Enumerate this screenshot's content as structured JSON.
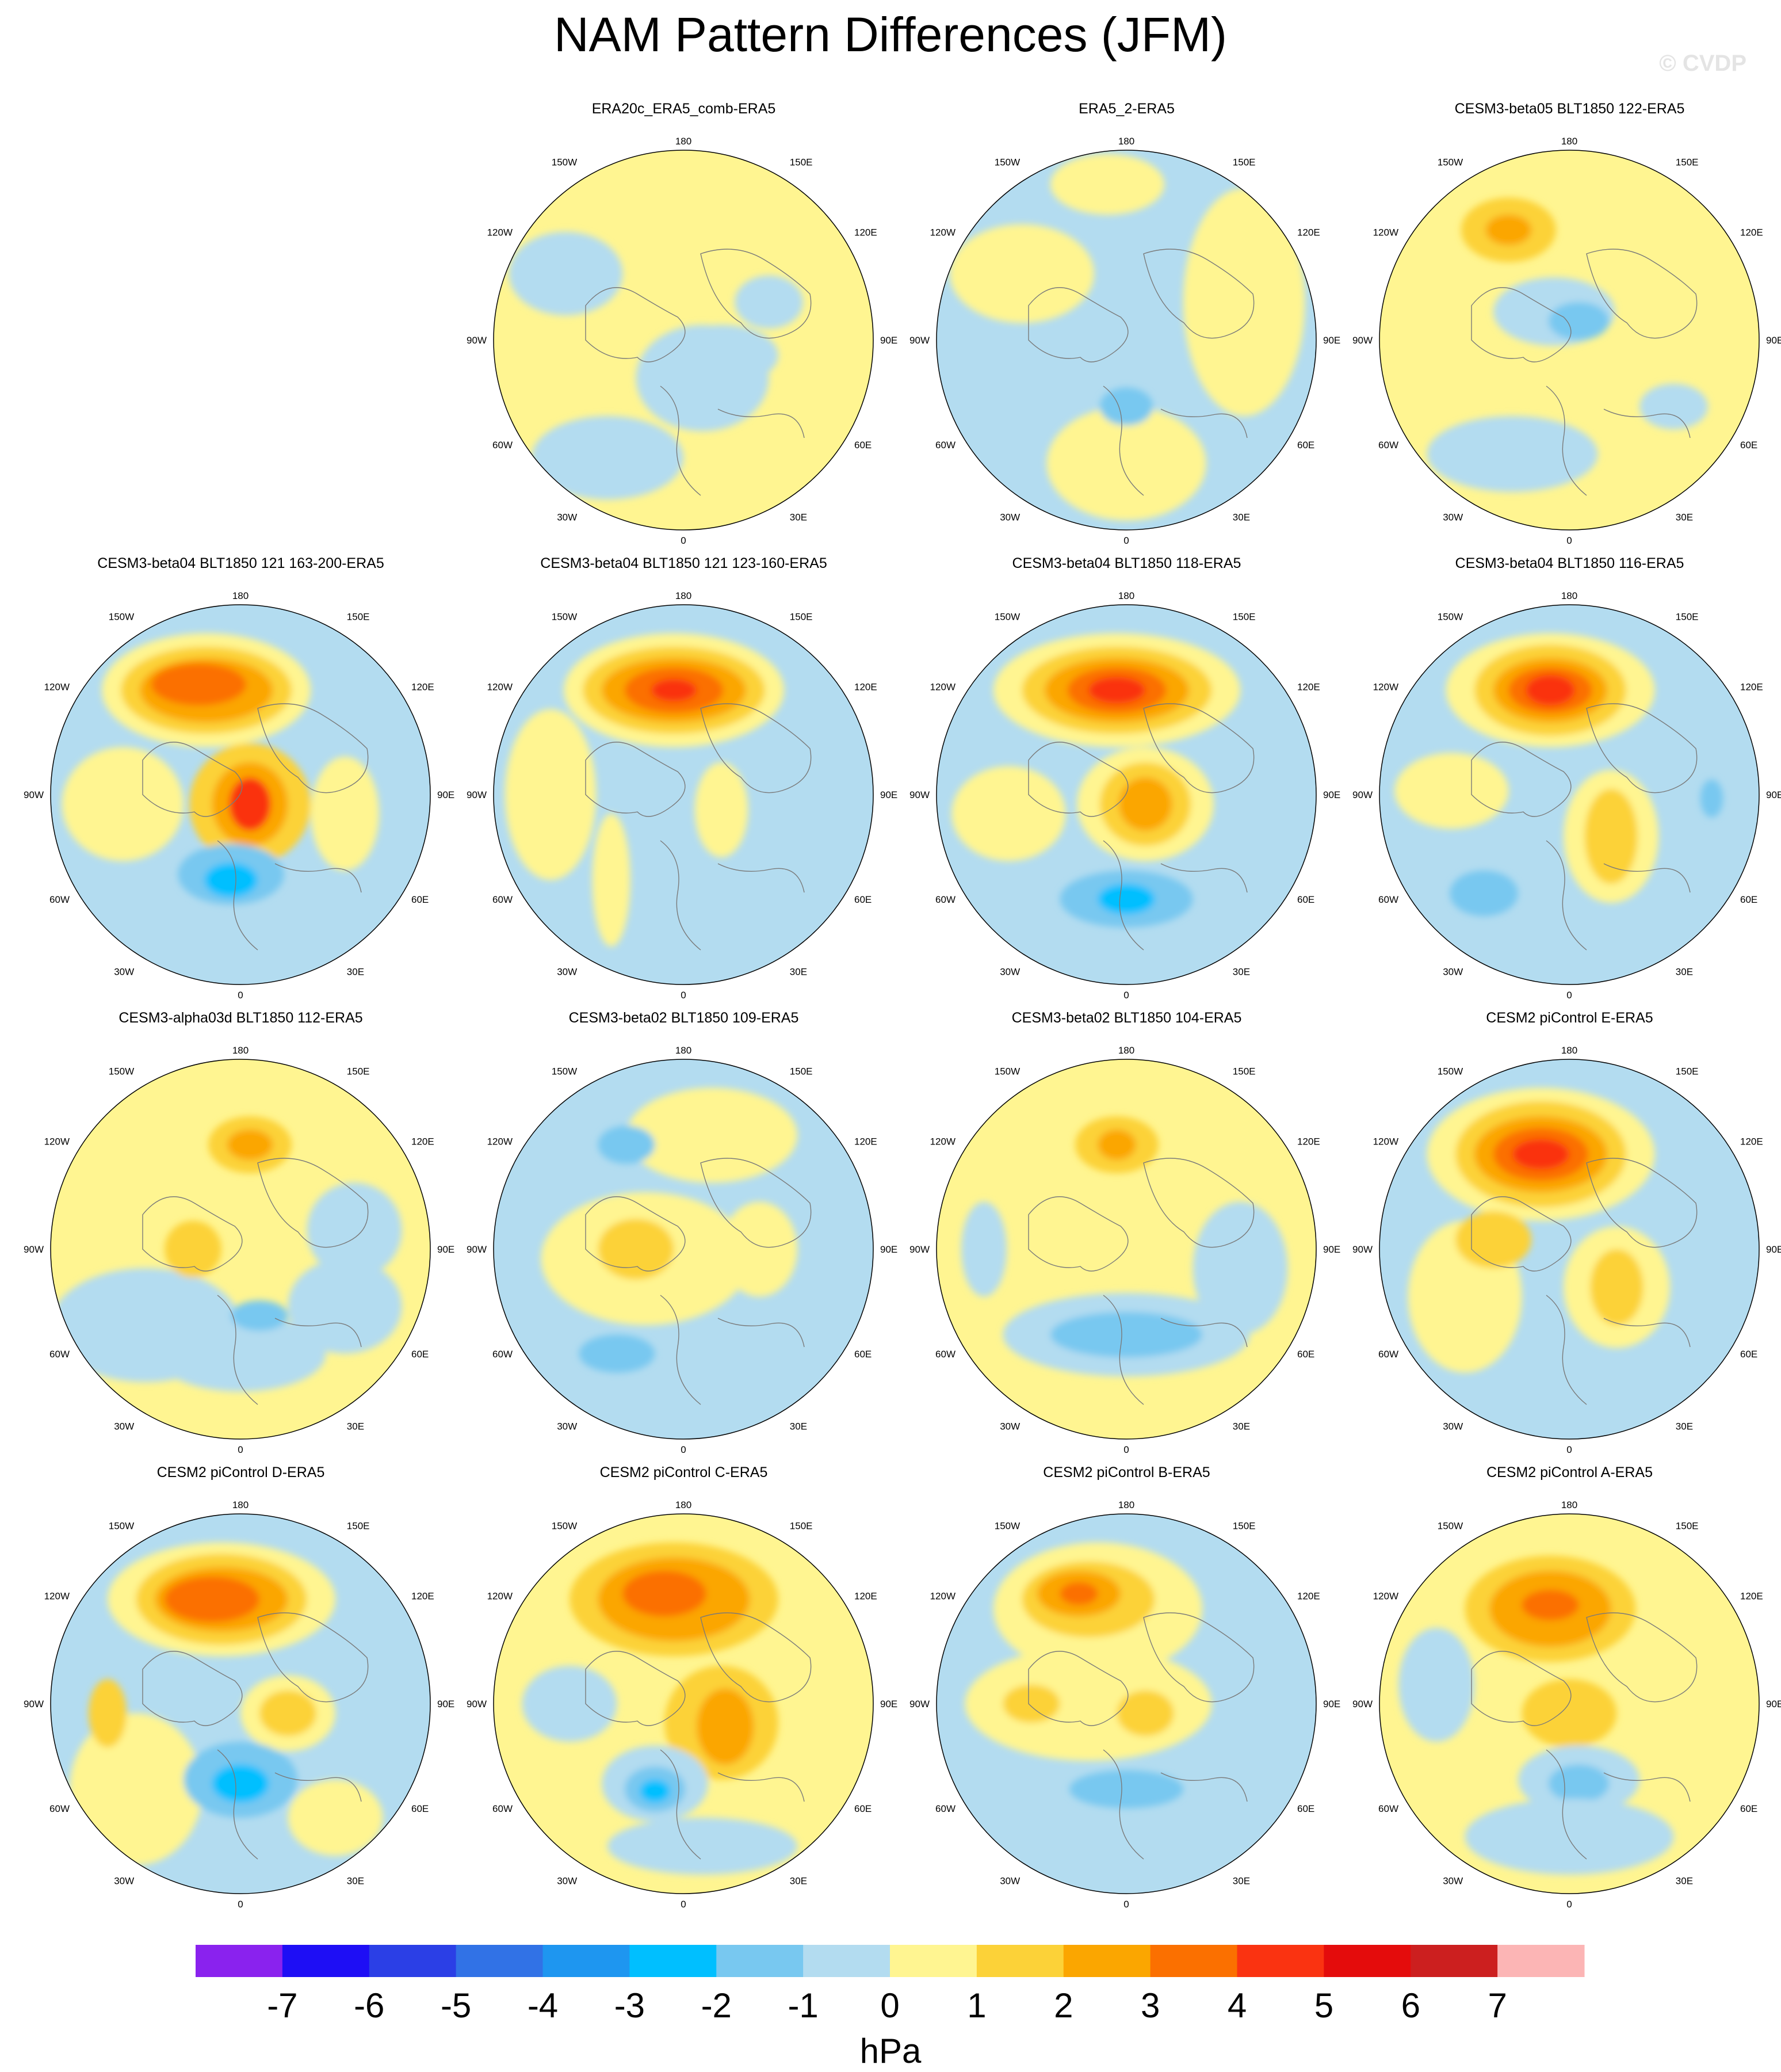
{
  "title": "NAM Pattern Differences (JFM)",
  "watermark": "© CVDP",
  "colorbar": {
    "unit": "hPa",
    "ticks": [
      "-7",
      "-6",
      "-5",
      "-4",
      "-3",
      "-2",
      "-1",
      "0",
      "1",
      "2",
      "3",
      "4",
      "5",
      "6",
      "7"
    ],
    "colors": [
      "#8a22ee",
      "#1e0ef5",
      "#2b3fe6",
      "#3172e6",
      "#1e96f0",
      "#00bfff",
      "#78c8f0",
      "#b3dcf0",
      "#fff591",
      "#fcd238",
      "#fba600",
      "#fb7000",
      "#fa3311",
      "#e40c0c",
      "#cc1f1f",
      "#fcb5b5"
    ]
  },
  "map_labels": {
    "top": "180",
    "bottom": "0",
    "left": "90W",
    "right": "90E",
    "ul1": "150W",
    "ul2": "120W",
    "ll1": "60W",
    "ll2": "30W",
    "ur1": "150E",
    "ur2": "120E",
    "lr1": "60E",
    "lr2": "30E"
  },
  "panels": [
    {
      "title": "ERA20c_ERA5_comb-ERA5",
      "row": 0,
      "col": 1,
      "base": "pos",
      "blobs": [
        [
          0.2,
          0.08,
          0.3,
          0.16,
          -1
        ],
        [
          -0.62,
          -0.35,
          0.3,
          0.22,
          -1
        ],
        [
          0.1,
          0.2,
          0.35,
          0.28,
          -1
        ],
        [
          -0.4,
          0.62,
          0.4,
          0.22,
          -1
        ],
        [
          0.45,
          -0.2,
          0.18,
          0.14,
          -1
        ]
      ]
    },
    {
      "title": "ERA5_2-ERA5",
      "row": 0,
      "col": 2,
      "base": "neg",
      "blobs": [
        [
          0.62,
          -0.2,
          0.32,
          0.6,
          1
        ],
        [
          -0.55,
          -0.35,
          0.38,
          0.26,
          1
        ],
        [
          0.0,
          0.65,
          0.42,
          0.3,
          1
        ],
        [
          -0.1,
          -0.82,
          0.3,
          0.16,
          1
        ],
        [
          0.0,
          0.35,
          0.14,
          0.1,
          -2
        ]
      ]
    },
    {
      "title": "CESM3-beta05 BLT1850 122-ERA5",
      "row": 0,
      "col": 3,
      "base": "pos",
      "blobs": [
        [
          -0.32,
          -0.58,
          0.25,
          0.17,
          2
        ],
        [
          -0.32,
          -0.58,
          0.12,
          0.08,
          3
        ],
        [
          -0.08,
          -0.15,
          0.32,
          0.18,
          -1
        ],
        [
          0.05,
          -0.1,
          0.16,
          0.1,
          -2
        ],
        [
          -0.3,
          0.6,
          0.45,
          0.2,
          -1
        ],
        [
          0.55,
          0.35,
          0.18,
          0.12,
          -1
        ]
      ]
    },
    {
      "title": "CESM3-beta04 BLT1850 121 163-200-ERA5",
      "row": 1,
      "col": 0,
      "base": "neg",
      "blobs": [
        [
          -0.18,
          -0.55,
          0.55,
          0.3,
          1
        ],
        [
          -0.18,
          -0.55,
          0.45,
          0.23,
          2
        ],
        [
          -0.18,
          -0.55,
          0.35,
          0.17,
          3
        ],
        [
          -0.22,
          -0.58,
          0.25,
          0.11,
          4
        ],
        [
          -0.62,
          0.05,
          0.32,
          0.3,
          1
        ],
        [
          0.05,
          0.05,
          0.32,
          0.32,
          2
        ],
        [
          0.05,
          0.05,
          0.2,
          0.22,
          3
        ],
        [
          0.05,
          0.05,
          0.11,
          0.14,
          5
        ],
        [
          -0.05,
          0.42,
          0.28,
          0.16,
          -2
        ],
        [
          -0.05,
          0.45,
          0.14,
          0.09,
          -3
        ],
        [
          0.55,
          0.1,
          0.18,
          0.3,
          1
        ]
      ]
    },
    {
      "title": "CESM3-beta04 BLT1850 121 123-160-ERA5",
      "row": 1,
      "col": 1,
      "base": "neg",
      "blobs": [
        [
          -0.05,
          -0.55,
          0.58,
          0.3,
          1
        ],
        [
          -0.05,
          -0.55,
          0.48,
          0.23,
          2
        ],
        [
          -0.05,
          -0.55,
          0.38,
          0.17,
          3
        ],
        [
          -0.05,
          -0.55,
          0.26,
          0.12,
          4
        ],
        [
          -0.05,
          -0.55,
          0.12,
          0.06,
          5
        ],
        [
          -0.7,
          0.0,
          0.24,
          0.45,
          1
        ],
        [
          0.2,
          0.08,
          0.14,
          0.25,
          1
        ],
        [
          -0.38,
          0.45,
          0.1,
          0.35,
          1
        ]
      ]
    },
    {
      "title": "CESM3-beta04 BLT1850 118-ERA5",
      "row": 1,
      "col": 2,
      "base": "neg",
      "blobs": [
        [
          -0.05,
          -0.55,
          0.65,
          0.3,
          1
        ],
        [
          -0.05,
          -0.55,
          0.5,
          0.23,
          2
        ],
        [
          -0.05,
          -0.55,
          0.38,
          0.17,
          3
        ],
        [
          -0.05,
          -0.55,
          0.26,
          0.12,
          4
        ],
        [
          -0.05,
          -0.55,
          0.15,
          0.07,
          5
        ],
        [
          0.1,
          0.05,
          0.36,
          0.3,
          1
        ],
        [
          0.1,
          0.05,
          0.24,
          0.22,
          2
        ],
        [
          0.1,
          0.05,
          0.14,
          0.14,
          3
        ],
        [
          0.0,
          0.55,
          0.35,
          0.15,
          -2
        ],
        [
          0.0,
          0.55,
          0.15,
          0.08,
          -3
        ],
        [
          -0.62,
          0.1,
          0.3,
          0.25,
          1
        ]
      ]
    },
    {
      "title": "CESM3-beta04 BLT1850 116-ERA5",
      "row": 1,
      "col": 3,
      "base": "neg",
      "blobs": [
        [
          -0.1,
          -0.55,
          0.55,
          0.3,
          1
        ],
        [
          -0.1,
          -0.55,
          0.4,
          0.24,
          2
        ],
        [
          -0.1,
          -0.55,
          0.3,
          0.17,
          3
        ],
        [
          -0.1,
          -0.55,
          0.22,
          0.12,
          4
        ],
        [
          -0.1,
          -0.55,
          0.13,
          0.08,
          5
        ],
        [
          0.22,
          0.22,
          0.25,
          0.35,
          1
        ],
        [
          0.22,
          0.22,
          0.14,
          0.25,
          2
        ],
        [
          -0.45,
          0.52,
          0.18,
          0.12,
          -2
        ],
        [
          -0.62,
          -0.02,
          0.3,
          0.2,
          1
        ],
        [
          0.75,
          0.02,
          0.06,
          0.1,
          -2
        ]
      ]
    },
    {
      "title": "CESM3-alpha03d BLT1850 112-ERA5",
      "row": 2,
      "col": 0,
      "base": "pos",
      "blobs": [
        [
          -0.5,
          0.4,
          0.5,
          0.3,
          -1
        ],
        [
          0.0,
          0.55,
          0.45,
          0.2,
          -1
        ],
        [
          0.55,
          0.3,
          0.3,
          0.25,
          -1
        ],
        [
          0.6,
          -0.1,
          0.25,
          0.25,
          -1
        ],
        [
          0.05,
          -0.55,
          0.22,
          0.15,
          2
        ],
        [
          0.05,
          -0.55,
          0.12,
          0.08,
          3
        ],
        [
          -0.25,
          0.0,
          0.15,
          0.15,
          2
        ],
        [
          0.1,
          0.35,
          0.15,
          0.08,
          -2
        ]
      ]
    },
    {
      "title": "CESM3-beta02 BLT1850 109-ERA5",
      "row": 2,
      "col": 1,
      "base": "neg",
      "blobs": [
        [
          -0.2,
          0.05,
          0.55,
          0.35,
          1
        ],
        [
          0.15,
          -0.6,
          0.45,
          0.25,
          1
        ],
        [
          -0.25,
          0.0,
          0.2,
          0.16,
          2
        ],
        [
          -0.3,
          -0.55,
          0.15,
          0.1,
          -2
        ],
        [
          0.4,
          0.0,
          0.2,
          0.25,
          1
        ],
        [
          -0.35,
          0.55,
          0.2,
          0.1,
          -2
        ]
      ]
    },
    {
      "title": "CESM3-beta02 BLT1850 104-ERA5",
      "row": 2,
      "col": 2,
      "base": "pos",
      "blobs": [
        [
          0.0,
          0.45,
          0.65,
          0.22,
          -1
        ],
        [
          0.0,
          0.45,
          0.4,
          0.12,
          -2
        ],
        [
          0.6,
          0.1,
          0.25,
          0.35,
          -1
        ],
        [
          -0.75,
          0.0,
          0.12,
          0.25,
          -1
        ],
        [
          -0.05,
          -0.55,
          0.22,
          0.15,
          2
        ],
        [
          -0.05,
          -0.55,
          0.1,
          0.08,
          3
        ]
      ]
    },
    {
      "title": "CESM2 piControl E-ERA5",
      "row": 2,
      "col": 3,
      "base": "neg",
      "blobs": [
        [
          -0.15,
          -0.5,
          0.6,
          0.35,
          1
        ],
        [
          -0.15,
          -0.5,
          0.45,
          0.28,
          2
        ],
        [
          -0.15,
          -0.5,
          0.35,
          0.2,
          3
        ],
        [
          -0.15,
          -0.5,
          0.25,
          0.14,
          4
        ],
        [
          -0.15,
          -0.5,
          0.15,
          0.08,
          5
        ],
        [
          0.25,
          0.2,
          0.28,
          0.32,
          1
        ],
        [
          0.25,
          0.2,
          0.14,
          0.2,
          2
        ],
        [
          -0.55,
          0.25,
          0.3,
          0.4,
          1
        ],
        [
          -0.4,
          -0.05,
          0.2,
          0.15,
          2
        ]
      ]
    },
    {
      "title": "CESM2 piControl D-ERA5",
      "row": 3,
      "col": 0,
      "base": "neg",
      "blobs": [
        [
          -0.1,
          -0.55,
          0.6,
          0.3,
          1
        ],
        [
          -0.1,
          -0.55,
          0.45,
          0.24,
          2
        ],
        [
          -0.1,
          -0.55,
          0.35,
          0.17,
          3
        ],
        [
          -0.15,
          -0.55,
          0.25,
          0.12,
          4
        ],
        [
          -0.55,
          0.45,
          0.35,
          0.4,
          1
        ],
        [
          -0.7,
          0.05,
          0.1,
          0.18,
          2
        ],
        [
          0.25,
          0.05,
          0.25,
          0.2,
          1
        ],
        [
          0.25,
          0.05,
          0.15,
          0.12,
          2
        ],
        [
          0.0,
          0.4,
          0.3,
          0.2,
          -2
        ],
        [
          0.0,
          0.42,
          0.15,
          0.1,
          -3
        ],
        [
          0.5,
          0.6,
          0.25,
          0.2,
          1
        ]
      ]
    },
    {
      "title": "CESM2 piControl C-ERA5",
      "row": 3,
      "col": 1,
      "base": "pos",
      "blobs": [
        [
          -0.05,
          -0.55,
          0.55,
          0.3,
          2
        ],
        [
          -0.05,
          -0.55,
          0.4,
          0.22,
          3
        ],
        [
          -0.1,
          -0.58,
          0.22,
          0.12,
          4
        ],
        [
          0.2,
          0.1,
          0.3,
          0.3,
          2
        ],
        [
          0.22,
          0.12,
          0.15,
          0.2,
          3
        ],
        [
          -0.15,
          0.42,
          0.28,
          0.2,
          -1
        ],
        [
          -0.15,
          0.45,
          0.16,
          0.12,
          -2
        ],
        [
          -0.15,
          0.46,
          0.08,
          0.06,
          -3
        ],
        [
          -0.6,
          0.0,
          0.25,
          0.2,
          -1
        ],
        [
          0.1,
          0.75,
          0.5,
          0.15,
          -1
        ]
      ]
    },
    {
      "title": "CESM2 piControl B-ERA5",
      "row": 3,
      "col": 2,
      "base": "neg",
      "blobs": [
        [
          -0.15,
          -0.5,
          0.55,
          0.35,
          1
        ],
        [
          -0.2,
          -0.55,
          0.35,
          0.2,
          2
        ],
        [
          -0.25,
          -0.58,
          0.22,
          0.12,
          3
        ],
        [
          -0.25,
          -0.58,
          0.1,
          0.06,
          4
        ],
        [
          -0.2,
          0.0,
          0.65,
          0.3,
          1
        ],
        [
          0.1,
          0.05,
          0.15,
          0.12,
          2
        ],
        [
          -0.5,
          0.0,
          0.15,
          0.1,
          2
        ],
        [
          0.0,
          0.45,
          0.3,
          0.1,
          -2
        ]
      ]
    },
    {
      "title": "CESM2 piControl A-ERA5",
      "row": 3,
      "col": 3,
      "base": "pos",
      "blobs": [
        [
          -0.1,
          -0.5,
          0.45,
          0.28,
          2
        ],
        [
          -0.1,
          -0.5,
          0.32,
          0.2,
          3
        ],
        [
          -0.1,
          -0.52,
          0.15,
          0.08,
          4
        ],
        [
          0.0,
          0.05,
          0.25,
          0.18,
          2
        ],
        [
          0.05,
          0.4,
          0.32,
          0.18,
          -1
        ],
        [
          0.05,
          0.42,
          0.16,
          0.1,
          -2
        ],
        [
          0.0,
          0.7,
          0.55,
          0.2,
          -1
        ],
        [
          -0.7,
          -0.1,
          0.2,
          0.3,
          -1
        ]
      ]
    }
  ]
}
